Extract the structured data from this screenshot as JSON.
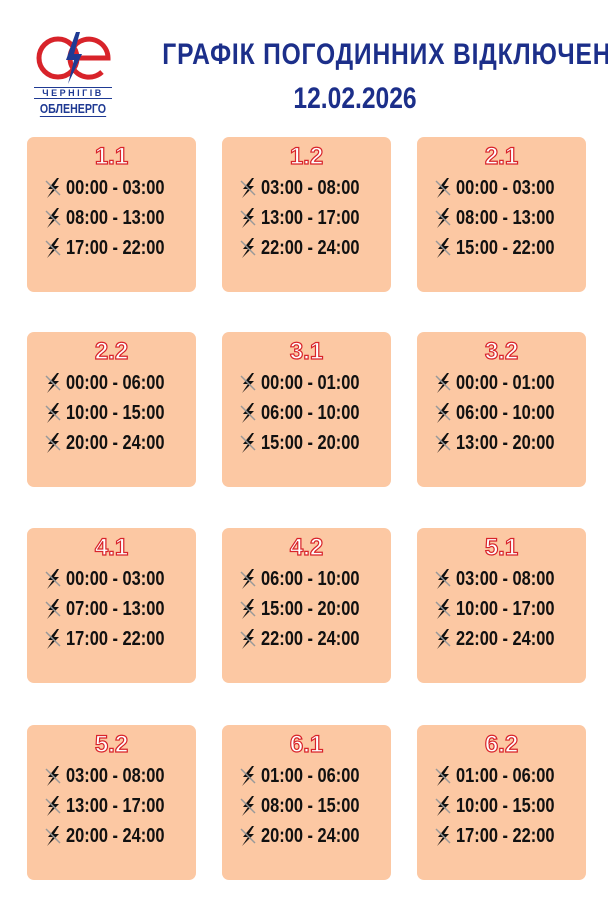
{
  "header": {
    "title": "ГРАФІК ПОГОДИННИХ ВІДКЛЮЧЕНЬ",
    "date": "12.02.2026"
  },
  "logo": {
    "line1": "ЧЕРНІГІВ",
    "line2": "ОБЛЕНЕРГО"
  },
  "colors": {
    "card": "#fcc8a3",
    "title": "#1c2f8a",
    "group": "#d8232a"
  },
  "groups": [
    {
      "name": "1.1",
      "slots": [
        "00:00 - 03:00",
        "08:00 - 13:00",
        "17:00 - 22:00"
      ]
    },
    {
      "name": "1.2",
      "slots": [
        "03:00 - 08:00",
        "13:00 - 17:00",
        "22:00 - 24:00"
      ]
    },
    {
      "name": "2.1",
      "slots": [
        "00:00 - 03:00",
        "08:00 - 13:00",
        "15:00 - 22:00"
      ]
    },
    {
      "name": "2.2",
      "slots": [
        "00:00 - 06:00",
        "10:00 - 15:00",
        "20:00 - 24:00"
      ]
    },
    {
      "name": "3.1",
      "slots": [
        "00:00 - 01:00",
        "06:00 - 10:00",
        "15:00 - 20:00"
      ]
    },
    {
      "name": "3.2",
      "slots": [
        "00:00 - 01:00",
        "06:00 - 10:00",
        "13:00 - 20:00"
      ]
    },
    {
      "name": "4.1",
      "slots": [
        "00:00 - 03:00",
        "07:00 - 13:00",
        "17:00 - 22:00"
      ]
    },
    {
      "name": "4.2",
      "slots": [
        "06:00 - 10:00",
        "15:00 - 20:00",
        "22:00 - 24:00"
      ]
    },
    {
      "name": "5.1",
      "slots": [
        "03:00 - 08:00",
        "10:00 - 17:00",
        "22:00 - 24:00"
      ]
    },
    {
      "name": "5.2",
      "slots": [
        "03:00 - 08:00",
        "13:00 - 17:00",
        "20:00 - 24:00"
      ]
    },
    {
      "name": "6.1",
      "slots": [
        "01:00 - 06:00",
        "08:00 - 15:00",
        "20:00 - 24:00"
      ]
    },
    {
      "name": "6.2",
      "slots": [
        "01:00 - 06:00",
        "10:00 - 15:00",
        "17:00 - 22:00"
      ]
    }
  ]
}
